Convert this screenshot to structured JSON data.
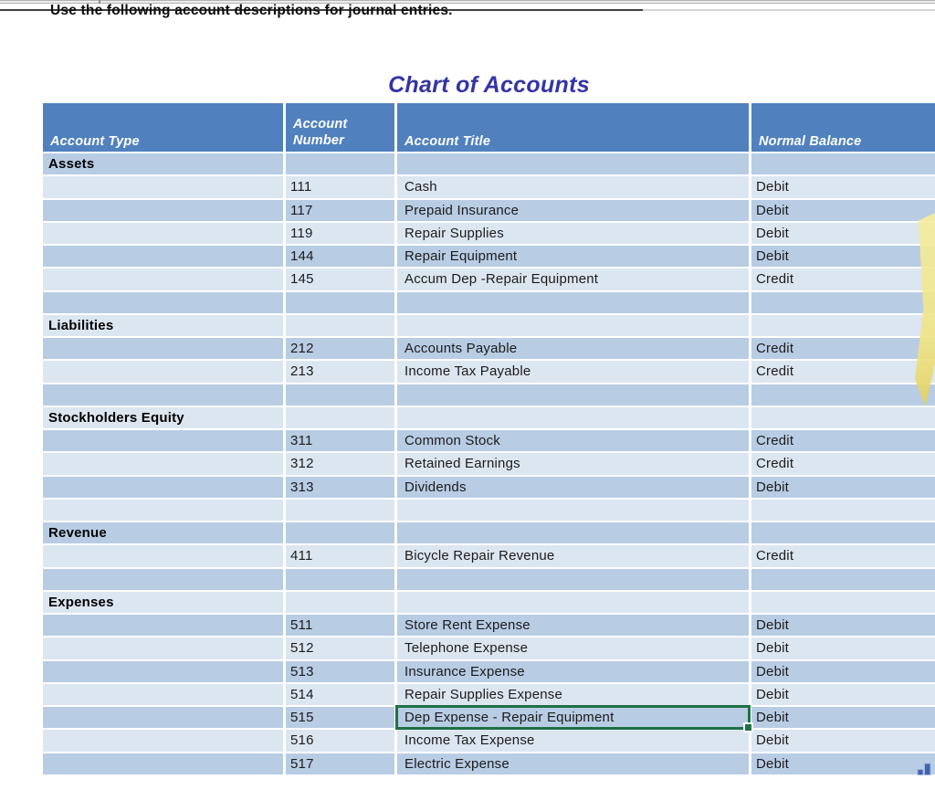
{
  "page": {
    "instruction": "Use the following account descriptions for journal entries.",
    "title": "Chart of Accounts"
  },
  "table": {
    "columns": [
      "Account Type",
      "Account Number",
      "Account Title",
      "Normal Balance"
    ],
    "rows": [
      {
        "kind": "section",
        "label": "Assets"
      },
      {
        "kind": "account",
        "number": "111",
        "title": "Cash",
        "balance": "Debit"
      },
      {
        "kind": "account",
        "number": "117",
        "title": "Prepaid Insurance",
        "balance": "Debit"
      },
      {
        "kind": "account",
        "number": "119",
        "title": "Repair Supplies",
        "balance": "Debit"
      },
      {
        "kind": "account",
        "number": "144",
        "title": "Repair Equipment",
        "balance": "Debit"
      },
      {
        "kind": "account",
        "number": "145",
        "title": "Accum Dep -Repair Equipment",
        "balance": "Credit"
      },
      {
        "kind": "blank"
      },
      {
        "kind": "section",
        "label": "Liabilities"
      },
      {
        "kind": "account",
        "number": "212",
        "title": "Accounts Payable",
        "balance": "Credit"
      },
      {
        "kind": "account",
        "number": "213",
        "title": "Income Tax Payable",
        "balance": "Credit"
      },
      {
        "kind": "blank"
      },
      {
        "kind": "section",
        "label": "Stockholders Equity"
      },
      {
        "kind": "account",
        "number": "311",
        "title": "Common Stock",
        "balance": "Credit"
      },
      {
        "kind": "account",
        "number": "312",
        "title": "Retained Earnings",
        "balance": "Credit"
      },
      {
        "kind": "account",
        "number": "313",
        "title": "Dividends",
        "balance": "Debit"
      },
      {
        "kind": "blank"
      },
      {
        "kind": "section",
        "label": "Revenue"
      },
      {
        "kind": "account",
        "number": "411",
        "title": "Bicycle Repair Revenue",
        "balance": "Credit"
      },
      {
        "kind": "blank"
      },
      {
        "kind": "section",
        "label": "Expenses"
      },
      {
        "kind": "account",
        "number": "511",
        "title": "Store Rent Expense",
        "balance": "Debit"
      },
      {
        "kind": "account",
        "number": "512",
        "title": "Telephone Expense",
        "balance": "Debit"
      },
      {
        "kind": "account",
        "number": "513",
        "title": "Insurance Expense",
        "balance": "Debit"
      },
      {
        "kind": "account",
        "number": "514",
        "title": "Repair Supplies Expense",
        "balance": "Debit"
      },
      {
        "kind": "account",
        "number": "515",
        "title": "Dep Expense - Repair Equipment",
        "balance": "Debit",
        "selected": true
      },
      {
        "kind": "account",
        "number": "516",
        "title": "Income Tax Expense",
        "balance": "Debit"
      },
      {
        "kind": "account",
        "number": "517",
        "title": "Electric Expense",
        "balance": "Debit"
      }
    ]
  },
  "colors": {
    "header_bg": "#5081BE",
    "band_light": "#DCE6F1",
    "band_medium": "#B8CCE4",
    "header_text": "#FFFFFF",
    "title_text": "#3434A6",
    "selection_border": "#1E7145",
    "corner_glyph": "#3F63AE",
    "artifact_yellow": "#EFE384"
  }
}
